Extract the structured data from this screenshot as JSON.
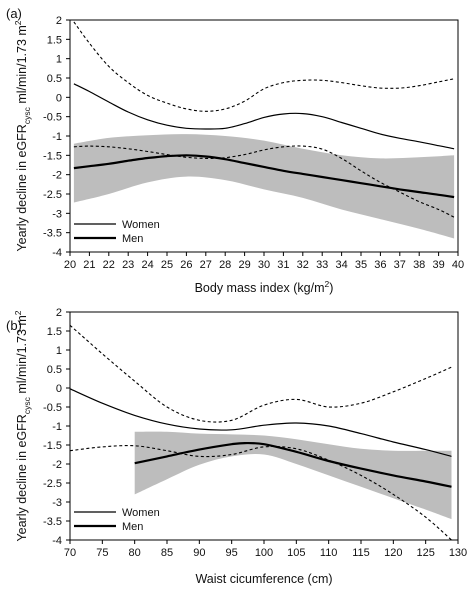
{
  "chart_data": [
    {
      "type": "line",
      "panel": "(a)",
      "xlabel": "Body mass index (kg/m²)",
      "ylabel": "Yearly decline in eGFRcysc ml/min/1.73 m²",
      "ylabel_parts": {
        "pre": "Yearly decline in eGFR",
        "sub": "cysc",
        "post": " ml/min/1.73 m",
        "sup": "2"
      },
      "xlabel_parts": {
        "pre": "Body mass index (kg/m",
        "sup": "2",
        "post": ")"
      },
      "xlim": [
        20,
        40
      ],
      "ylim": [
        -4,
        2
      ],
      "xticks": [
        "20",
        "21",
        "22",
        "23",
        "24",
        "25",
        "26",
        "27",
        "28",
        "29",
        "30",
        "31",
        "32",
        "33",
        "34",
        "35",
        "36",
        "37",
        "38",
        "39",
        "40"
      ],
      "yticks": [
        "2",
        "1.5",
        "1",
        "0.5",
        "0",
        "-0.5",
        "-1",
        "-1.5",
        "-2",
        "-2.5",
        "-3",
        "-3.5",
        "-4"
      ],
      "legend": {
        "position": "bottom-left",
        "entries": [
          "Women",
          "Men"
        ]
      },
      "series": [
        {
          "name": "Women",
          "style": "thin solid",
          "x": [
            20.2,
            21,
            22,
            23,
            24,
            25,
            26,
            27,
            28,
            29,
            30,
            31,
            32,
            33,
            34,
            35,
            36,
            37,
            38,
            39,
            39.8
          ],
          "values": [
            0.35,
            0.15,
            -0.12,
            -0.38,
            -0.58,
            -0.72,
            -0.8,
            -0.82,
            -0.8,
            -0.68,
            -0.52,
            -0.43,
            -0.42,
            -0.5,
            -0.65,
            -0.8,
            -0.95,
            -1.06,
            -1.15,
            -1.25,
            -1.33
          ]
        },
        {
          "name": "Men",
          "style": "thick solid",
          "x": [
            20.2,
            21,
            22,
            23,
            24,
            25,
            26,
            27,
            28,
            29,
            30,
            31,
            32,
            33,
            34,
            35,
            36,
            37,
            38,
            39,
            39.8
          ],
          "values": [
            -1.83,
            -1.78,
            -1.72,
            -1.64,
            -1.57,
            -1.52,
            -1.5,
            -1.53,
            -1.6,
            -1.7,
            -1.8,
            -1.9,
            -1.98,
            -2.06,
            -2.14,
            -2.22,
            -2.3,
            -2.38,
            -2.45,
            -2.52,
            -2.58
          ]
        },
        {
          "role": "women-ci-upper",
          "style": "dashed",
          "x": [
            20.2,
            21,
            22,
            23,
            24,
            25,
            26,
            27,
            28,
            29,
            30,
            31,
            32,
            33,
            34,
            35,
            36,
            37,
            38,
            39,
            39.8
          ],
          "values": [
            1.95,
            1.4,
            0.8,
            0.38,
            0.05,
            -0.15,
            -0.3,
            -0.36,
            -0.3,
            -0.1,
            0.22,
            0.38,
            0.44,
            0.44,
            0.38,
            0.3,
            0.24,
            0.24,
            0.3,
            0.4,
            0.48
          ]
        },
        {
          "role": "women-ci-lower",
          "style": "dashed",
          "x": [
            20.2,
            21,
            22,
            23,
            24,
            25,
            26,
            27,
            28,
            29,
            30,
            31,
            32,
            33,
            34,
            35,
            36,
            37,
            38,
            39,
            39.8
          ],
          "values": [
            -1.28,
            -1.26,
            -1.28,
            -1.33,
            -1.4,
            -1.48,
            -1.55,
            -1.58,
            -1.56,
            -1.48,
            -1.36,
            -1.28,
            -1.26,
            -1.34,
            -1.58,
            -1.9,
            -2.2,
            -2.45,
            -2.7,
            -2.9,
            -3.1
          ]
        },
        {
          "role": "men-ci-band",
          "style": "grey fill",
          "x": [
            20.2,
            22,
            24,
            26,
            28,
            30,
            32,
            34,
            36,
            38,
            39.8
          ],
          "upper": [
            -1.2,
            -1.05,
            -0.98,
            -0.95,
            -1.0,
            -1.12,
            -1.33,
            -1.5,
            -1.58,
            -1.55,
            -1.5
          ],
          "lower": [
            -2.72,
            -2.5,
            -2.2,
            -2.05,
            -2.14,
            -2.38,
            -2.6,
            -2.9,
            -3.15,
            -3.4,
            -3.65
          ]
        }
      ]
    },
    {
      "type": "line",
      "panel": "(b)",
      "xlabel": "Waist cicumference (cm)",
      "ylabel": "Yearly decline in eGFRcysc ml/min/1.73 m²",
      "ylabel_parts": {
        "pre": "Yearly decline in eGFR",
        "sub": "cysc",
        "post": " ml/min/1.73 m",
        "sup": "2"
      },
      "xlim": [
        70,
        130
      ],
      "ylim": [
        -4,
        2
      ],
      "xticks": [
        "70",
        "75",
        "80",
        "85",
        "90",
        "95",
        "100",
        "105",
        "110",
        "115",
        "120",
        "125",
        "130"
      ],
      "yticks": [
        "2",
        "1.5",
        "1",
        "0.5",
        "0",
        "-0.5",
        "-1",
        "-1.5",
        "-2",
        "-2.5",
        "-3",
        "-3.5",
        "-4"
      ],
      "legend": {
        "position": "bottom-left",
        "entries": [
          "Women",
          "Men"
        ]
      },
      "series": [
        {
          "name": "Women",
          "style": "thin solid",
          "x": [
            70,
            75,
            80,
            85,
            90,
            95,
            100,
            105,
            110,
            115,
            120,
            125,
            129
          ],
          "values": [
            -0.02,
            -0.4,
            -0.72,
            -0.95,
            -1.08,
            -1.1,
            -0.98,
            -0.92,
            -1.0,
            -1.2,
            -1.42,
            -1.62,
            -1.8
          ]
        },
        {
          "name": "Men",
          "style": "thick solid",
          "x": [
            80,
            85,
            90,
            95,
            97,
            100,
            105,
            110,
            115,
            120,
            125,
            129
          ],
          "values": [
            -1.98,
            -1.8,
            -1.62,
            -1.48,
            -1.45,
            -1.48,
            -1.68,
            -1.92,
            -2.12,
            -2.3,
            -2.46,
            -2.6
          ]
        },
        {
          "role": "women-ci-upper",
          "style": "dashed",
          "x": [
            70,
            75,
            80,
            85,
            90,
            95,
            100,
            105,
            110,
            115,
            120,
            125,
            129
          ],
          "values": [
            1.65,
            0.9,
            0.18,
            -0.5,
            -0.85,
            -0.85,
            -0.45,
            -0.3,
            -0.5,
            -0.4,
            -0.1,
            0.25,
            0.55
          ]
        },
        {
          "role": "women-ci-lower",
          "style": "dashed",
          "x": [
            70,
            75,
            80,
            85,
            90,
            95,
            100,
            105,
            110,
            115,
            120,
            125,
            129
          ],
          "values": [
            -1.65,
            -1.55,
            -1.52,
            -1.65,
            -1.8,
            -1.75,
            -1.55,
            -1.6,
            -1.9,
            -2.3,
            -2.8,
            -3.4,
            -4.0
          ]
        },
        {
          "role": "men-ci-band",
          "style": "grey fill",
          "x": [
            80,
            85,
            90,
            95,
            100,
            105,
            110,
            115,
            120,
            125,
            129
          ],
          "upper": [
            -1.15,
            -1.15,
            -1.2,
            -1.22,
            -1.25,
            -1.35,
            -1.48,
            -1.6,
            -1.65,
            -1.65,
            -1.65
          ],
          "lower": [
            -2.8,
            -2.4,
            -2.02,
            -1.8,
            -1.75,
            -2.0,
            -2.3,
            -2.6,
            -2.9,
            -3.2,
            -3.45
          ]
        }
      ]
    }
  ]
}
